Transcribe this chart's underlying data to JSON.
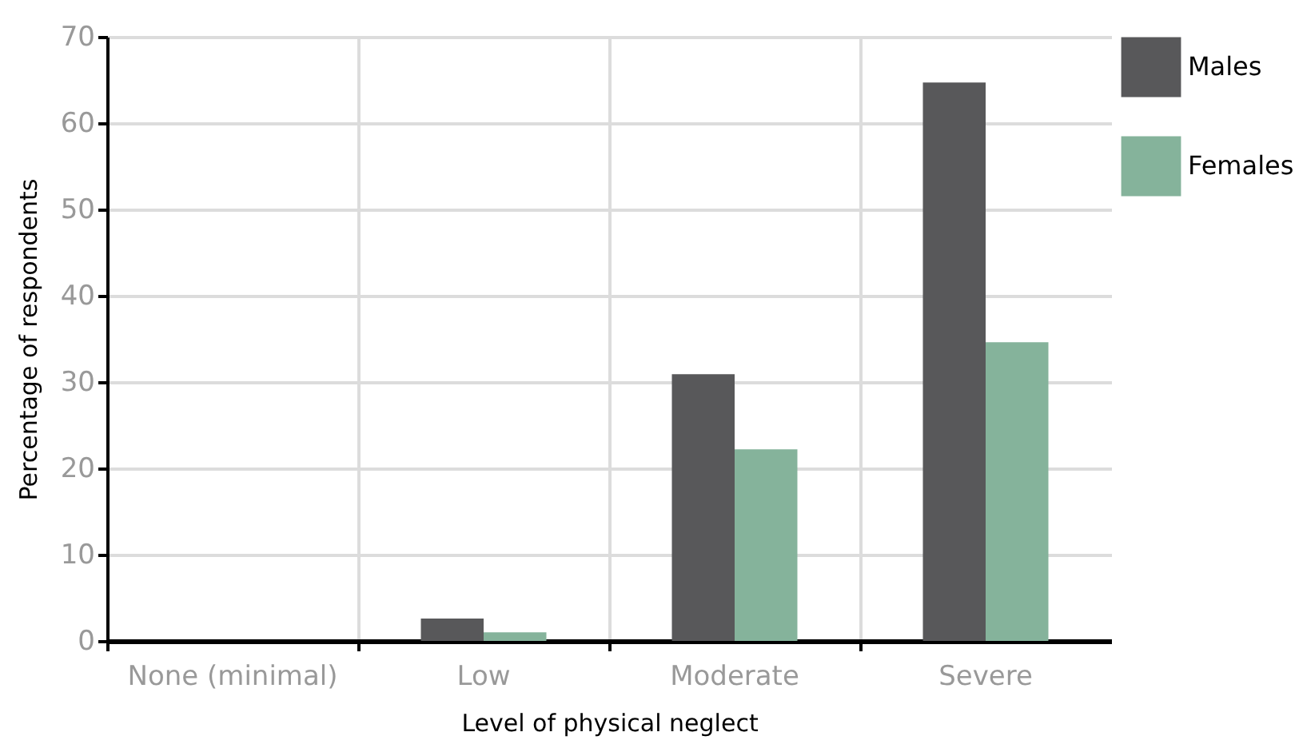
{
  "chart_data": {
    "type": "bar",
    "xlabel": "Level of physical neglect",
    "ylabel": "Percentage of respondents",
    "categories": [
      "None (minimal)",
      "Low",
      "Moderate",
      "Severe"
    ],
    "series": [
      {
        "name": "Males",
        "color": "#58585a",
        "values": [
          0,
          2.6,
          30.9,
          64.7
        ]
      },
      {
        "name": "Females",
        "color": "#85b39b",
        "values": [
          0,
          1.0,
          22.2,
          34.6
        ]
      }
    ],
    "ylim": [
      0,
      70
    ],
    "yticks": [
      0,
      10,
      20,
      30,
      40,
      50,
      60,
      70
    ],
    "grid": true,
    "legend": "right"
  }
}
